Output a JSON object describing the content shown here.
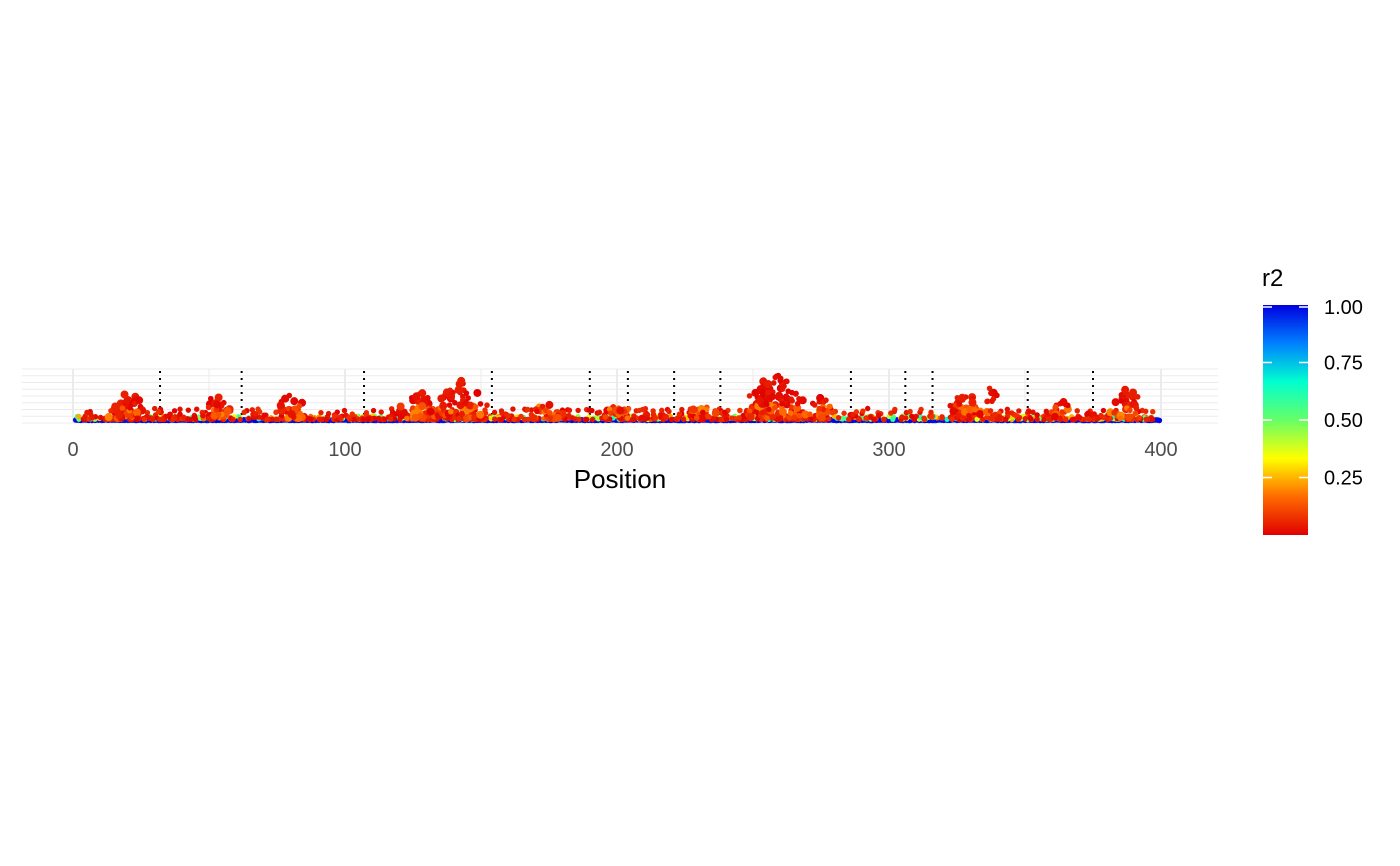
{
  "chart_data": {
    "type": "scatter",
    "title": "",
    "xlabel": "Position",
    "ylabel": "",
    "xlim": [
      -18,
      420
    ],
    "ylim": [
      0,
      1
    ],
    "x_ticks": [
      0,
      100,
      200,
      300,
      400
    ],
    "x_tick_labels": [
      "0",
      "100",
      "200",
      "300",
      "400"
    ],
    "grid": true,
    "grid_color": "#ebebeb",
    "color_variable": "r2",
    "color_scale": {
      "title": "r2",
      "range": [
        0,
        1
      ],
      "ticks": [
        0.25,
        0.5,
        0.75,
        1.0
      ],
      "tick_labels": [
        "0.25",
        "0.50",
        "0.75",
        "1.00"
      ],
      "colors": [
        "#e00000",
        "#ff6a00",
        "#ffff00",
        "#66ff66",
        "#00ffd0",
        "#0080ff",
        "#0000e0"
      ],
      "legend_position": "right"
    },
    "boundary_line_style": "dotted",
    "boundary_line_color": "#000000",
    "boundaries_x": [
      32,
      62,
      107,
      154,
      190,
      204,
      221,
      238,
      286,
      306,
      316,
      351,
      375
    ],
    "cluster_peaks": [
      {
        "x": 20,
        "height": 0.6,
        "width": 9,
        "density": 45
      },
      {
        "x": 52,
        "height": 0.5,
        "width": 7,
        "density": 30
      },
      {
        "x": 80,
        "height": 0.5,
        "width": 8,
        "density": 30
      },
      {
        "x": 128,
        "height": 0.55,
        "width": 10,
        "density": 45
      },
      {
        "x": 143,
        "height": 0.85,
        "width": 10,
        "density": 60
      },
      {
        "x": 175,
        "height": 0.3,
        "width": 10,
        "density": 25
      },
      {
        "x": 200,
        "height": 0.28,
        "width": 8,
        "density": 20
      },
      {
        "x": 232,
        "height": 0.3,
        "width": 8,
        "density": 20
      },
      {
        "x": 258,
        "height": 0.95,
        "width": 14,
        "density": 120
      },
      {
        "x": 275,
        "height": 0.45,
        "width": 8,
        "density": 25
      },
      {
        "x": 328,
        "height": 0.55,
        "width": 8,
        "density": 35
      },
      {
        "x": 338,
        "height": 0.7,
        "width": 5,
        "density": 15
      },
      {
        "x": 363,
        "height": 0.4,
        "width": 6,
        "density": 20
      },
      {
        "x": 388,
        "height": 0.65,
        "width": 8,
        "density": 40
      }
    ]
  }
}
